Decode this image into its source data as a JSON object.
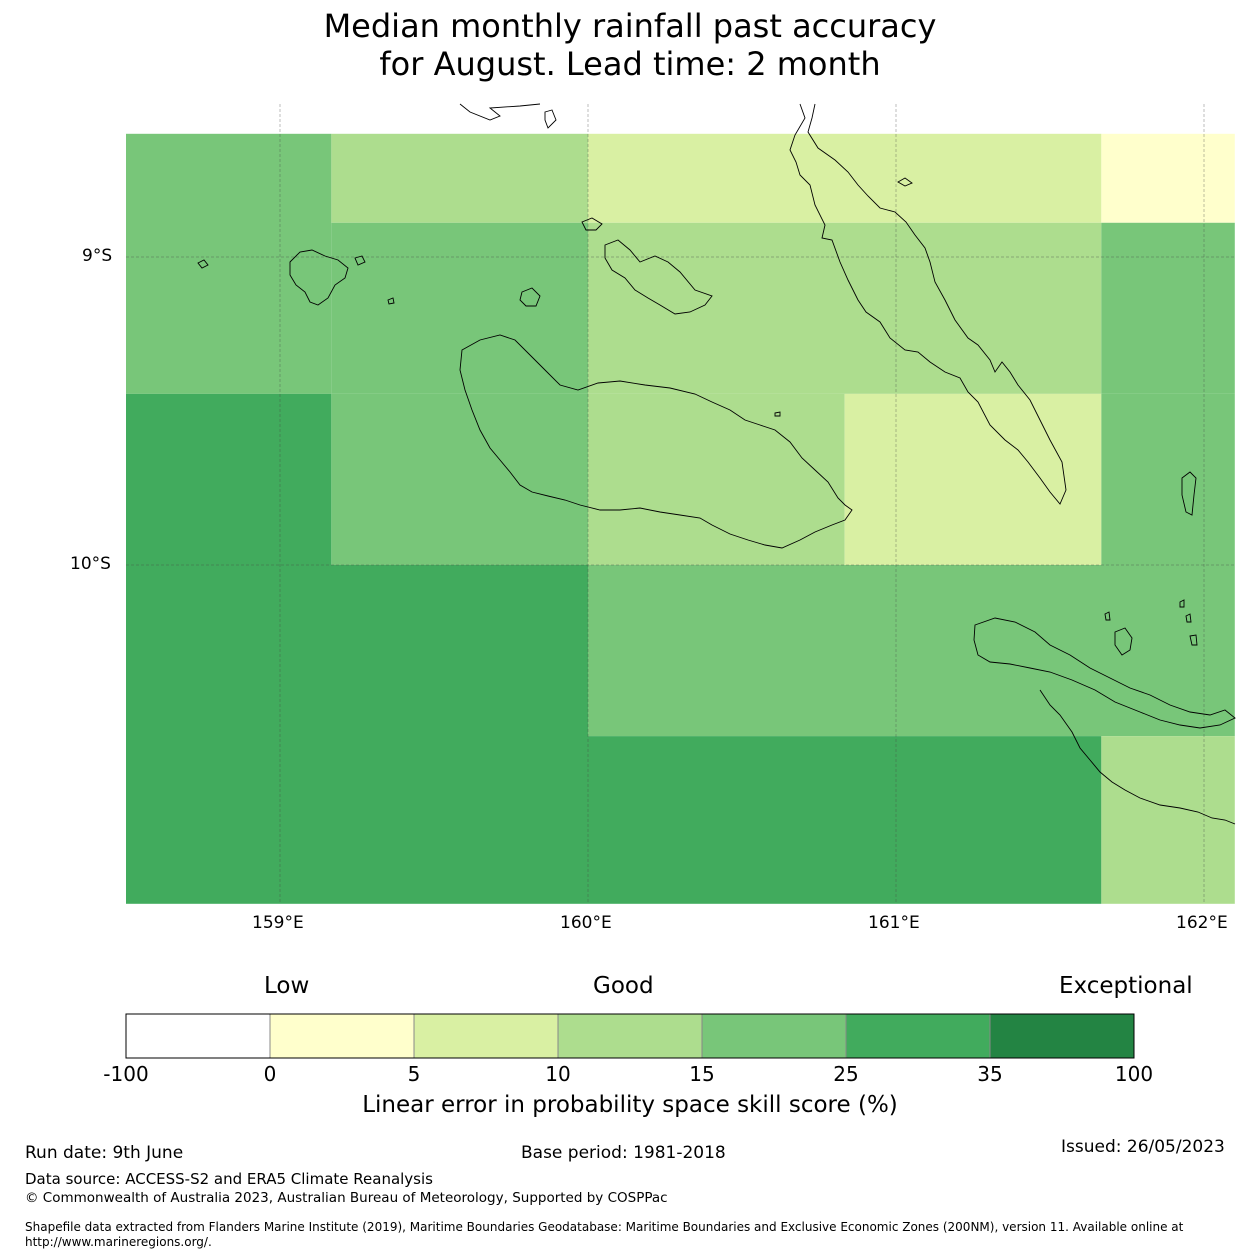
{
  "title_line1": "Median monthly rainfall past accuracy",
  "title_line2": "for August. Lead time: 2 month",
  "map": {
    "lon_ticks": [
      "159°E",
      "160°E",
      "161°E",
      "162°E"
    ],
    "lat_ticks": [
      "9°S",
      "10°S"
    ],
    "grid_cells": [
      {
        "lon0": 158.5,
        "lon1": 159.1667,
        "lat0": -8.6,
        "lat1": -9.4444,
        "class": 4
      },
      {
        "lon0": 159.1667,
        "lon1": 160.0,
        "lat0": -8.6,
        "lat1": -8.8889,
        "class": 3
      },
      {
        "lon0": 160.0,
        "lon1": 161.6667,
        "lat0": -8.6,
        "lat1": -8.8889,
        "class": 2
      },
      {
        "lon0": 161.6667,
        "lon1": 162.1,
        "lat0": -8.6,
        "lat1": -8.8889,
        "class": 1
      },
      {
        "lon0": 159.1667,
        "lon1": 160.0,
        "lat0": -8.8889,
        "lat1": -9.4444,
        "class": 4
      },
      {
        "lon0": 160.0,
        "lon1": 161.6667,
        "lat0": -8.8889,
        "lat1": -9.4444,
        "class": 3
      },
      {
        "lon0": 161.6667,
        "lon1": 162.1,
        "lat0": -8.8889,
        "lat1": -9.4444,
        "class": 4
      },
      {
        "lon0": 158.5,
        "lon1": 159.1667,
        "lat0": -9.4444,
        "lat1": -10.0,
        "class": 5
      },
      {
        "lon0": 159.1667,
        "lon1": 160.0,
        "lat0": -9.4444,
        "lat1": -10.0,
        "class": 4
      },
      {
        "lon0": 160.0,
        "lon1": 160.8333,
        "lat0": -9.4444,
        "lat1": -10.0,
        "class": 3
      },
      {
        "lon0": 160.8333,
        "lon1": 161.6667,
        "lat0": -9.4444,
        "lat1": -10.0,
        "class": 2
      },
      {
        "lon0": 161.6667,
        "lon1": 162.1,
        "lat0": -9.4444,
        "lat1": -10.0,
        "class": 4
      },
      {
        "lon0": 158.5,
        "lon1": 160.0,
        "lat0": -10.0,
        "lat1": -11.1,
        "class": 5
      },
      {
        "lon0": 160.0,
        "lon1": 162.1,
        "lat0": -10.0,
        "lat1": -10.5556,
        "class": 4
      },
      {
        "lon0": 160.0,
        "lon1": 161.6667,
        "lat0": -10.5556,
        "lat1": -11.1,
        "class": 5
      },
      {
        "lon0": 161.6667,
        "lon1": 162.1,
        "lat0": -10.5556,
        "lat1": -11.1,
        "class": 3
      }
    ]
  },
  "colorbar": {
    "words": [
      "Low",
      "Good",
      "Exceptional"
    ],
    "ticks": [
      "-100",
      "0",
      "5",
      "10",
      "15",
      "25",
      "35",
      "100"
    ],
    "colors": [
      "#ffffff",
      "#ffffcc",
      "#d9f0a3",
      "#addd8e",
      "#78c679",
      "#41ab5d",
      "#238443"
    ],
    "label": "Linear error in probability space skill score (%)"
  },
  "footer": {
    "run_date": "Run date: 9th June",
    "base_period": "Base period: 1981-2018",
    "issued": "Issued: 26/05/2023",
    "data_source": "Data source: ACCESS-S2 and ERA5 Climate Reanalysis",
    "copyright": "© Commonwealth of Australia 2023, Australian Bureau of Meteorology, Supported by COSPPac",
    "shapefile": "Shapefile data extracted from Flanders Marine Institute (2019), Maritime Boundaries Geodatabase: Maritime Boundaries and Exclusive Economic Zones (200NM), version 11. Available online at http://www.marineregions.org/."
  }
}
